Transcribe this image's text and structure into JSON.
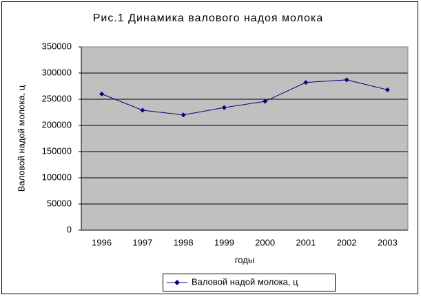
{
  "chart_data": {
    "type": "line",
    "title": "Рис.1 Динамика валового надоя молока",
    "x_label": "годы",
    "y_label": "Валовой надой молока, ц",
    "categories": [
      "1996",
      "1997",
      "1998",
      "1999",
      "2000",
      "2001",
      "2002",
      "2003"
    ],
    "series": [
      {
        "name": "Валовой надой молока, ц",
        "color": "#000080",
        "values": [
          260000,
          229000,
          220000,
          234000,
          246000,
          282000,
          287000,
          268000
        ]
      }
    ],
    "ylim": [
      0,
      350000
    ],
    "yticks": [
      0,
      50000,
      100000,
      150000,
      200000,
      250000,
      300000,
      350000
    ],
    "grid": true,
    "plot_background": "#c0c0c0",
    "legend": "bottom"
  }
}
